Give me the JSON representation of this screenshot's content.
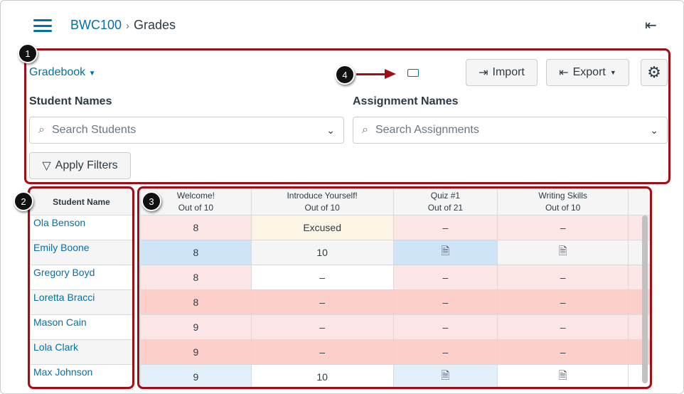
{
  "breadcrumb": {
    "course": "BWC100",
    "page": "Grades"
  },
  "toolbar": {
    "gradebook_menu": "Gradebook",
    "import": "Import",
    "export": "Export"
  },
  "filters": {
    "student_label": "Student Names",
    "student_placeholder": "Search Students",
    "assignment_label": "Assignment Names",
    "assignment_placeholder": "Search Assignments",
    "apply": "Apply Filters"
  },
  "callouts": [
    "1",
    "2",
    "3",
    "4"
  ],
  "colors": {
    "accent": "#0770a3",
    "callout_frame": "#a00d15",
    "low_score": "#fde6e6",
    "missing": "#fccfcb",
    "submitted": "#cfe5f7",
    "excused": "#fdf5e5"
  },
  "table": {
    "student_header": "Student Name",
    "columns": [
      {
        "name": "Welcome!",
        "points": "Out of 10"
      },
      {
        "name": "Introduce Yourself!",
        "points": "Out of 10"
      },
      {
        "name": "Quiz #1",
        "points": "Out of 21"
      },
      {
        "name": "Writing Skills",
        "points": "Out of 10"
      }
    ],
    "rows": [
      {
        "student": "Ola Benson",
        "cells": [
          "8",
          "Excused",
          "–",
          "–"
        ]
      },
      {
        "student": "Emily Boone",
        "cells": [
          "8",
          "10",
          "needs-grading-icon",
          "needs-grading-icon"
        ]
      },
      {
        "student": "Gregory Boyd",
        "cells": [
          "8",
          "–",
          "–",
          "–"
        ]
      },
      {
        "student": "Loretta Bracci",
        "cells": [
          "8",
          "–",
          "–",
          "–"
        ]
      },
      {
        "student": "Mason Cain",
        "cells": [
          "9",
          "–",
          "–",
          "–"
        ]
      },
      {
        "student": "Lola Clark",
        "cells": [
          "9",
          "–",
          "–",
          "–"
        ]
      },
      {
        "student": "Max Johnson",
        "cells": [
          "9",
          "10",
          "needs-grading-icon",
          "needs-grading-icon"
        ]
      }
    ]
  }
}
